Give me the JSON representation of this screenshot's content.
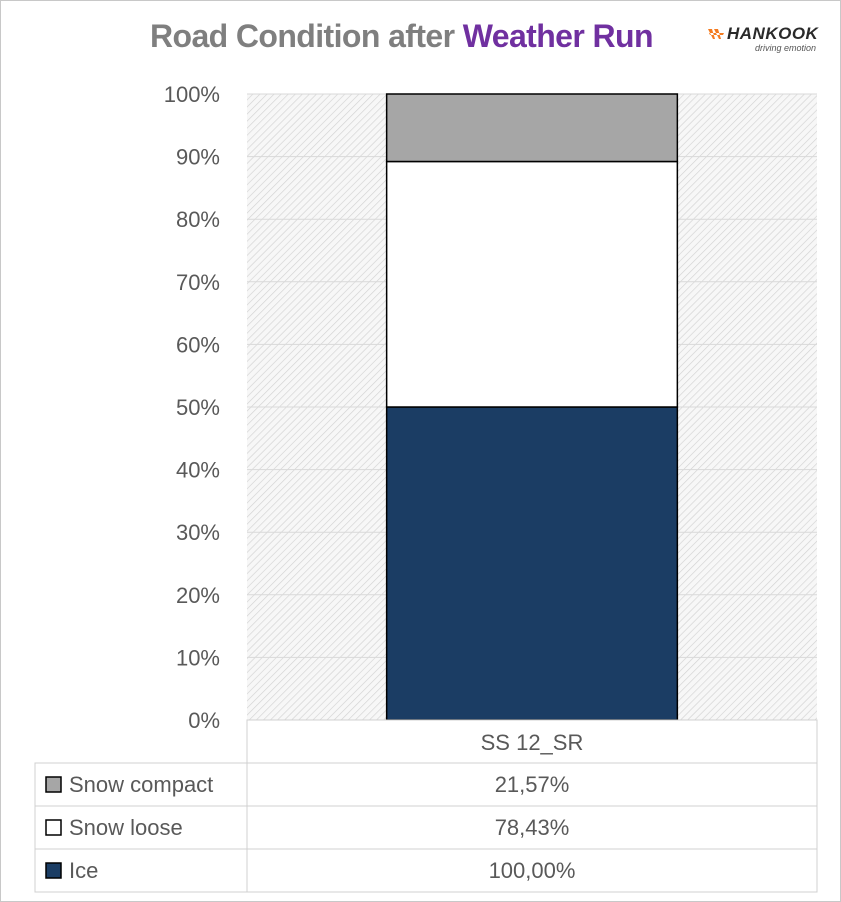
{
  "title": {
    "part1": "Road Condition after",
    "part2": "Weather Run"
  },
  "logo": {
    "brand": "HANKOOK",
    "tagline": "driving emotion",
    "icon": "hankook-logo-icon"
  },
  "colors": {
    "snow_compact": "#a6a6a6",
    "snow_loose": "#ffffff",
    "ice": "#1b3d64",
    "title_gray": "#7f7f7f",
    "title_purple": "#7030a0"
  },
  "chart_data": {
    "type": "bar",
    "stacking": "percent",
    "categories": [
      "SS 12_SR"
    ],
    "series": [
      {
        "name": "Ice",
        "values": [
          100.0
        ],
        "label": "100,00%",
        "color": "#1b3d64"
      },
      {
        "name": "Snow loose",
        "values": [
          78.43
        ],
        "label": "78,43%",
        "color": "#ffffff"
      },
      {
        "name": "Snow compact",
        "values": [
          21.57
        ],
        "label": "21,57%",
        "color": "#a6a6a6"
      }
    ],
    "yticks": [
      "0%",
      "10%",
      "20%",
      "30%",
      "40%",
      "50%",
      "60%",
      "70%",
      "80%",
      "90%",
      "100%"
    ],
    "ylim": [
      0,
      100
    ],
    "grid": true,
    "legend": "data-table"
  }
}
